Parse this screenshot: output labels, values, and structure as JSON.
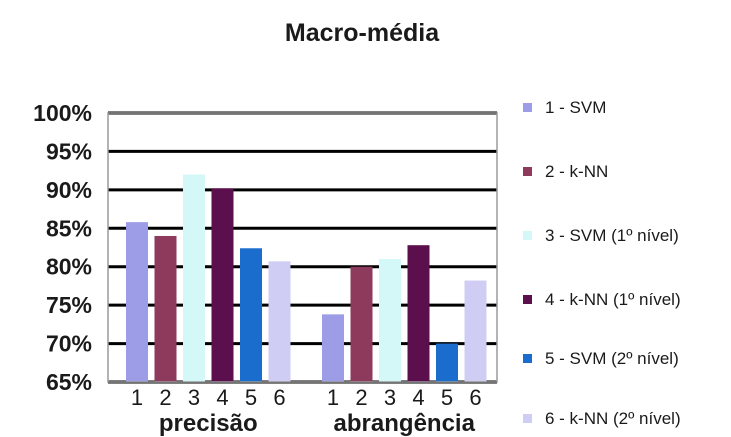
{
  "chart_data": {
    "type": "bar",
    "title": "Macro-média",
    "categories": [
      "precisão",
      "abrangência"
    ],
    "tick_labels": [
      "1",
      "2",
      "3",
      "4",
      "5",
      "6"
    ],
    "ylim": [
      65,
      100
    ],
    "y_ticks": [
      "65%",
      "70%",
      "75%",
      "80%",
      "85%",
      "90%",
      "95%",
      "100%"
    ],
    "grid": true,
    "legend_position": "right",
    "series": [
      {
        "name": "1 - SVM",
        "values": [
          85.8,
          73.8
        ],
        "color": "#9d9ce6"
      },
      {
        "name": "2 - k-NN",
        "values": [
          84.0,
          80.0
        ],
        "color": "#8e3a5c"
      },
      {
        "name": "3 - SVM (1º nível)",
        "values": [
          92.0,
          81.0
        ],
        "color": "#d4f8f8"
      },
      {
        "name": "4 - k-NN (1º nível)",
        "values": [
          90.2,
          82.8
        ],
        "color": "#5b0f4c"
      },
      {
        "name": "5 - SVM (2º nível)",
        "values": [
          82.4,
          70.0
        ],
        "color": "#1a6dcd"
      },
      {
        "name": "6 - k-NN (2º nível)",
        "values": [
          80.7,
          78.2
        ],
        "color": "#cfcdf3"
      }
    ]
  }
}
